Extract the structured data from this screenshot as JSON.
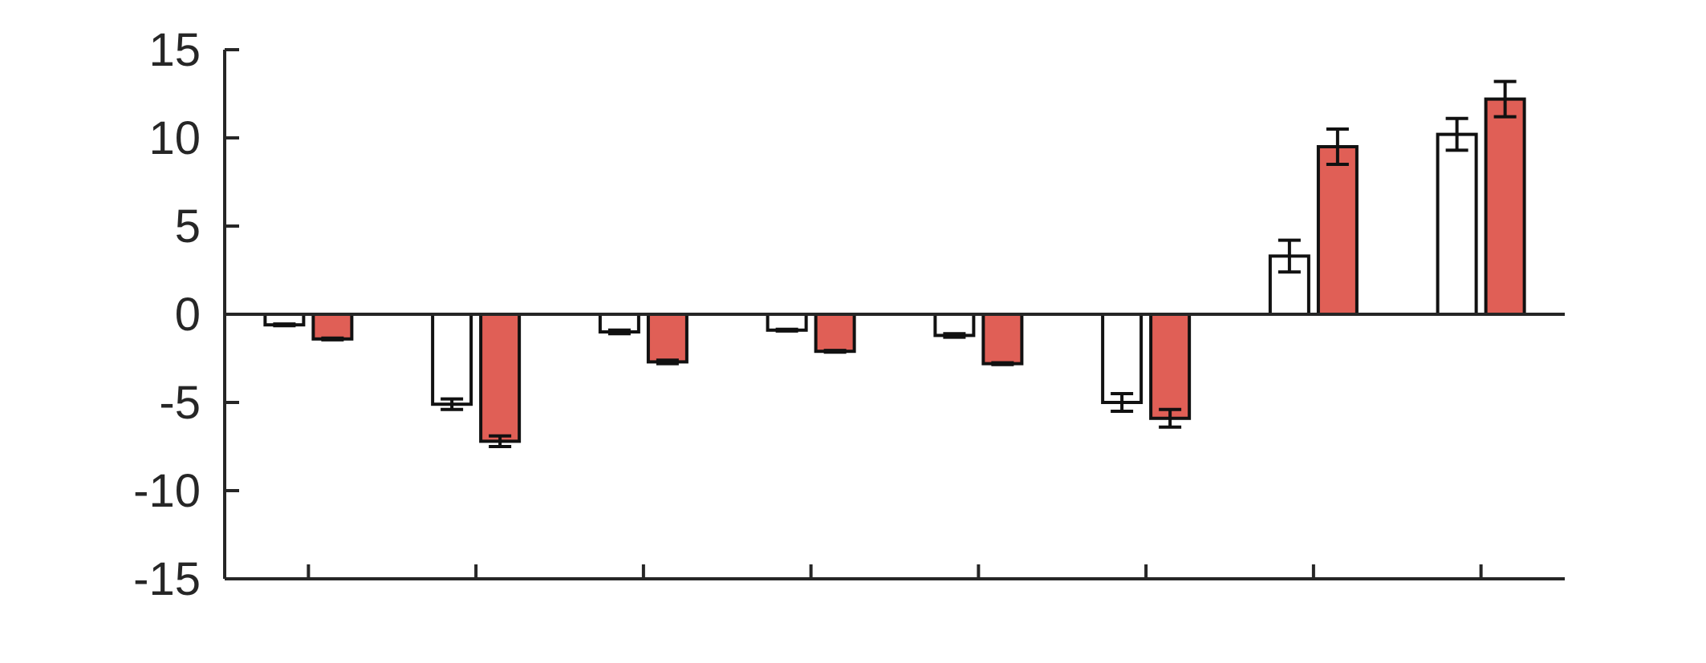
{
  "chart_data": {
    "type": "bar",
    "title": "",
    "xlabel": "",
    "ylabel": "",
    "ylim": [
      -15,
      15
    ],
    "yticks": [
      15,
      10,
      5,
      0,
      -5,
      -10,
      -15
    ],
    "grid": false,
    "legend": "none",
    "categories": [
      "",
      "",
      "",
      "",
      "",
      "",
      "",
      ""
    ],
    "series": [
      {
        "color": "#ffffff",
        "values": [
          -0.6,
          -5.1,
          -1.0,
          -0.9,
          -1.2,
          -5.0,
          3.3,
          10.2
        ],
        "errors": [
          0.05,
          0.3,
          0.1,
          0.05,
          0.1,
          0.5,
          0.9,
          0.9
        ]
      },
      {
        "color": "#e05f56",
        "values": [
          -1.4,
          -7.2,
          -2.7,
          -2.1,
          -2.8,
          -5.9,
          9.5,
          12.2
        ],
        "errors": [
          0.05,
          0.3,
          0.1,
          0.05,
          0.05,
          0.5,
          1.0,
          1.0
        ]
      }
    ]
  }
}
